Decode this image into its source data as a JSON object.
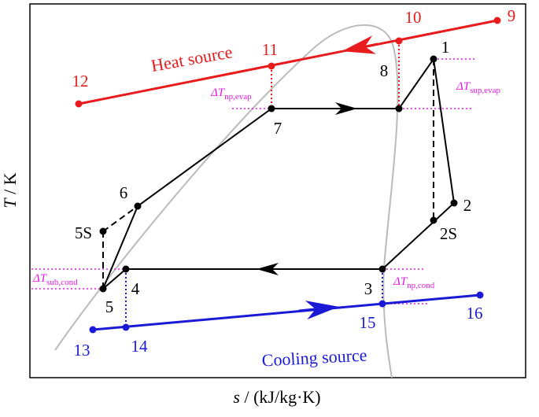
{
  "axes": {
    "y_label": {
      "symbol": "T",
      "unit": "/ K"
    },
    "x_label": {
      "symbol": "s",
      "unit": "/ (kJ/kg·K)"
    }
  },
  "sources": {
    "heat": "Heat source",
    "cooling": "Cooling source"
  },
  "points": [
    "1",
    "2",
    "2S",
    "3",
    "4",
    "5",
    "5S",
    "6",
    "7",
    "8",
    "9",
    "10",
    "11",
    "12",
    "13",
    "14",
    "15",
    "16"
  ],
  "deltas": [
    {
      "symbol": "ΔT",
      "subscript": "np,evap"
    },
    {
      "symbol": "ΔT",
      "subscript": "sup,evap"
    },
    {
      "symbol": "ΔT",
      "subscript": "sub,cond"
    },
    {
      "symbol": "ΔT",
      "subscript": "np,cond"
    }
  ]
}
